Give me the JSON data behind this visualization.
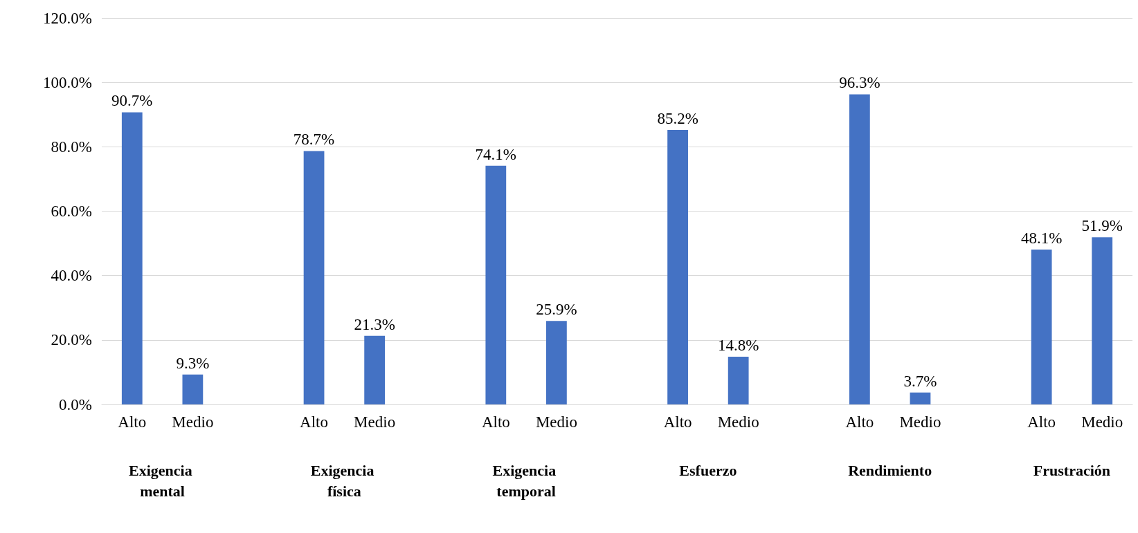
{
  "chart_data": {
    "type": "bar",
    "categories": [
      "Alto",
      "Medio",
      null,
      "Alto",
      "Medio",
      null,
      "Alto",
      "Medio",
      null,
      "Alto",
      "Medio",
      null,
      "Alto",
      "Medio",
      null,
      "Alto",
      "Medio"
    ],
    "values": [
      90.7,
      9.3,
      null,
      78.7,
      21.3,
      null,
      74.1,
      25.9,
      null,
      85.2,
      14.8,
      null,
      96.3,
      3.7,
      null,
      48.1,
      51.9
    ],
    "color": "#4472c4",
    "ylim": [
      0,
      120
    ],
    "yticks": [
      {
        "value": 0,
        "label": "0.0%"
      },
      {
        "value": 20,
        "label": "20.0%"
      },
      {
        "value": 40,
        "label": "40.0%"
      },
      {
        "value": 60,
        "label": "60.0%"
      },
      {
        "value": 80,
        "label": "80.0%"
      },
      {
        "value": 100,
        "label": "100.0%"
      },
      {
        "value": 120,
        "label": "120.0%"
      }
    ],
    "value_labels": [
      "90.7%",
      "9.3%",
      null,
      "78.7%",
      "21.3%",
      null,
      "74.1%",
      "25.9%",
      null,
      "85.2%",
      "14.8%",
      null,
      "96.3%",
      "3.7%",
      null,
      "48.1%",
      "51.9%"
    ],
    "annotations": [
      "Exigencia mental",
      "Exigencia física",
      "Exigencia temporal",
      "Esfuerzo",
      "Rendimiento",
      "Frustración"
    ],
    "grid": "y"
  }
}
